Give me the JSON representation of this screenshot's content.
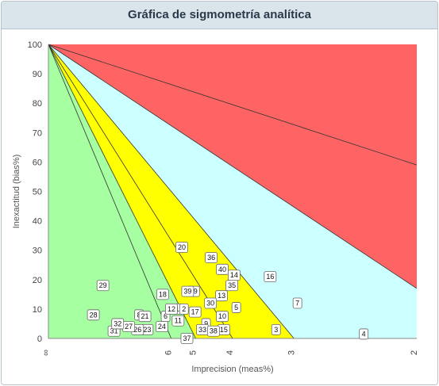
{
  "header": {
    "title": "Gráfica de sigmometría analítica"
  },
  "chart_data": {
    "type": "scatter",
    "title": "Gráfica de sigmometría analítica",
    "xlabel": "Imprecision (meas%)",
    "ylabel": "Inexactitud (bias%)",
    "x_scale": "reciprocal",
    "x_ticks": [
      "∞",
      "6",
      "5",
      "4",
      "3",
      "2"
    ],
    "xlim": [
      "∞",
      "2"
    ],
    "ylim": [
      0,
      100
    ],
    "y_ticks": [
      0,
      10,
      20,
      30,
      40,
      50,
      60,
      70,
      80,
      90,
      100
    ],
    "grid": false,
    "zones": [
      {
        "name": "green",
        "color": "#a6ffa0",
        "sigma_min": 6
      },
      {
        "name": "yellow",
        "color": "#ffff00",
        "sigma_min": 4,
        "sigma_max": 5
      },
      {
        "name": "light-blue",
        "color": "#ccffff",
        "sigma_min": 2,
        "sigma_max": 3
      },
      {
        "name": "red",
        "color": "#ff6464",
        "sigma_max": 2
      }
    ],
    "sigma_lines": [
      6,
      5,
      4,
      3,
      2
    ],
    "points": [
      {
        "label": "1",
        "x_inv": 0.175,
        "y": 10
      },
      {
        "label": "2",
        "x_inv": 0.184,
        "y": 10
      },
      {
        "label": "3",
        "x_inv": 0.309,
        "y": 3
      },
      {
        "label": "4",
        "x_inv": 0.428,
        "y": 1.5
      },
      {
        "label": "5",
        "x_inv": 0.255,
        "y": 10.5
      },
      {
        "label": "6",
        "x_inv": 0.159,
        "y": 7.5
      },
      {
        "label": "7",
        "x_inv": 0.338,
        "y": 12
      },
      {
        "label": "8",
        "x_inv": 0.123,
        "y": 8
      },
      {
        "label": "9",
        "x_inv": 0.214,
        "y": 5
      },
      {
        "label": "10",
        "x_inv": 0.236,
        "y": 7.5
      },
      {
        "label": "11",
        "x_inv": 0.176,
        "y": 6
      },
      {
        "label": "12",
        "x_inv": 0.167,
        "y": 10
      },
      {
        "label": "13",
        "x_inv": 0.235,
        "y": 14.5
      },
      {
        "label": "14",
        "x_inv": 0.252,
        "y": 21.5
      },
      {
        "label": "15",
        "x_inv": 0.238,
        "y": 3
      },
      {
        "label": "16",
        "x_inv": 0.301,
        "y": 21
      },
      {
        "label": "17",
        "x_inv": 0.199,
        "y": 9
      },
      {
        "label": "18",
        "x_inv": 0.155,
        "y": 15
      },
      {
        "label": "19",
        "x_inv": 0.197,
        "y": 16
      },
      {
        "label": "20",
        "x_inv": 0.181,
        "y": 31
      },
      {
        "label": "21",
        "x_inv": 0.131,
        "y": 7.5
      },
      {
        "label": "23",
        "x_inv": 0.134,
        "y": 3
      },
      {
        "label": "24",
        "x_inv": 0.154,
        "y": 4
      },
      {
        "label": "26",
        "x_inv": 0.121,
        "y": 3
      },
      {
        "label": "27",
        "x_inv": 0.109,
        "y": 4
      },
      {
        "label": "28",
        "x_inv": 0.061,
        "y": 8
      },
      {
        "label": "29",
        "x_inv": 0.074,
        "y": 18
      },
      {
        "label": "30",
        "x_inv": 0.22,
        "y": 12
      },
      {
        "label": "31",
        "x_inv": 0.089,
        "y": 2.5
      },
      {
        "label": "32",
        "x_inv": 0.094,
        "y": 5
      },
      {
        "label": "33",
        "x_inv": 0.209,
        "y": 3
      },
      {
        "label": "35",
        "x_inv": 0.249,
        "y": 18
      },
      {
        "label": "36",
        "x_inv": 0.221,
        "y": 27.5
      },
      {
        "label": "37",
        "x_inv": 0.188,
        "y": 0
      },
      {
        "label": "38",
        "x_inv": 0.224,
        "y": 2.5
      },
      {
        "label": "39",
        "x_inv": 0.189,
        "y": 16
      },
      {
        "label": "40",
        "x_inv": 0.236,
        "y": 23.5
      }
    ]
  }
}
